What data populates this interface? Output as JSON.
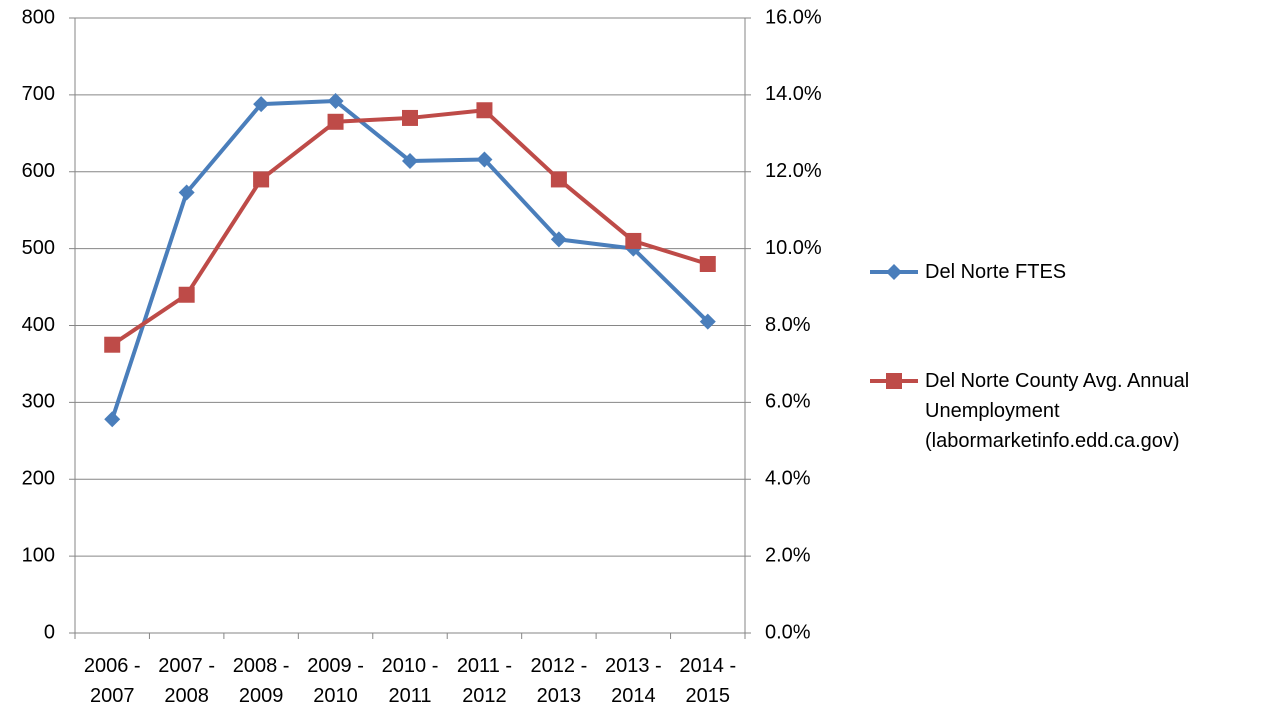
{
  "chart_data": {
    "type": "line",
    "categories": [
      "2006 - 2007",
      "2007 - 2008",
      "2008 - 2009",
      "2009 - 2010",
      "2010 - 2011",
      "2011 - 2012",
      "2012 - 2013",
      "2013 - 2014",
      "2014 - 2015"
    ],
    "series": [
      {
        "name": "Del Norte FTES",
        "color": "#4a7ebb",
        "marker": "diamond",
        "values": [
          278,
          573,
          688,
          692,
          614,
          616,
          512,
          500,
          405
        ]
      },
      {
        "name": "Del Norte County Avg. Annual Unemployment (labormarketinfo.edd.ca.gov)",
        "color": "#be4b48",
        "marker": "square",
        "axis": "y2",
        "values": [
          7.5,
          8.8,
          11.8,
          13.3,
          13.4,
          13.6,
          11.8,
          10.2,
          9.6
        ]
      }
    ],
    "ylim": [
      0,
      800
    ],
    "yticks": [
      0,
      100,
      200,
      300,
      400,
      500,
      600,
      700,
      800
    ],
    "y2lim": [
      0,
      16
    ],
    "y2ticks": [
      {
        "value": 0,
        "label": "0.0%"
      },
      {
        "value": 2,
        "label": "2.0%"
      },
      {
        "value": 4,
        "label": "4.0%"
      },
      {
        "value": 6,
        "label": "6.0%"
      },
      {
        "value": 8,
        "label": "8.0%"
      },
      {
        "value": 10,
        "label": "10.0%"
      },
      {
        "value": 12,
        "label": "12.0%"
      },
      {
        "value": 14,
        "label": "14.0%"
      },
      {
        "value": 16,
        "label": "16.0%"
      }
    ],
    "grid": true,
    "legend": "right"
  }
}
